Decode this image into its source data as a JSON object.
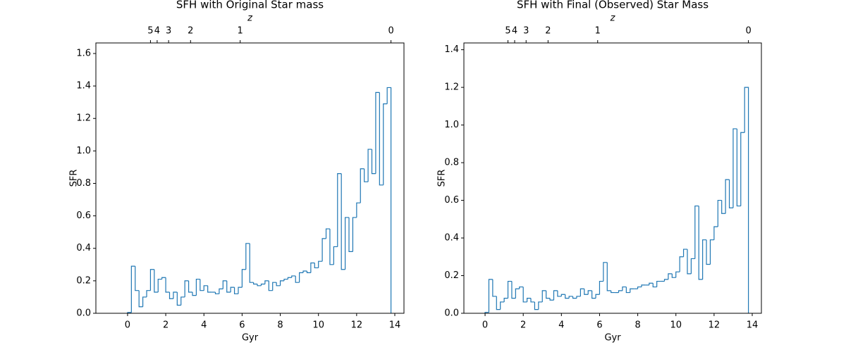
{
  "chart_data": [
    {
      "type": "step-histogram",
      "title": "SFH with Original Star mass",
      "xlabel": "Gyr",
      "ylabel": "SFR",
      "x2label": "z",
      "color": "#1f77b4",
      "xlim": [
        -1.66,
        14.48
      ],
      "ylim": [
        0,
        1.665
      ],
      "xticks": [
        0,
        2,
        4,
        6,
        8,
        10,
        12,
        14
      ],
      "yticks": [
        {
          "value": 0,
          "label": "0.0"
        },
        0.2,
        0.4,
        0.6,
        0.8,
        {
          "value": 1,
          "label": "1.0"
        },
        1.2,
        1.4,
        1.6
      ],
      "x2ticks": [
        {
          "value": 1.2,
          "label": "5"
        },
        {
          "value": 1.55,
          "label": "4"
        },
        {
          "value": 2.15,
          "label": "3"
        },
        {
          "value": 3.3,
          "label": "2"
        },
        {
          "value": 5.9,
          "label": "1"
        },
        {
          "value": 13.8,
          "label": "0"
        }
      ],
      "bins": [
        0,
        0.2,
        0.4,
        0.6,
        0.8,
        1,
        1.2,
        1.4,
        1.6,
        1.8,
        2,
        2.2,
        2.4,
        2.6,
        2.8,
        3,
        3.2,
        3.4,
        3.6,
        3.8,
        4,
        4.2,
        4.4,
        4.6,
        4.8,
        5,
        5.2,
        5.4,
        5.6,
        5.8,
        6,
        6.2,
        6.4,
        6.6,
        6.8,
        7,
        7.2,
        7.4,
        7.6,
        7.8,
        8,
        8.2,
        8.4,
        8.6,
        8.8,
        9,
        9.2,
        9.4,
        9.6,
        9.8,
        10,
        10.2,
        10.4,
        10.6,
        10.8,
        11,
        11.2,
        11.4,
        11.6,
        11.8,
        12,
        12.2,
        12.4,
        12.6,
        12.8,
        13,
        13.2,
        13.4,
        13.6,
        13.8
      ],
      "values": [
        0.005,
        0.29,
        0.14,
        0.04,
        0.1,
        0.14,
        0.27,
        0.13,
        0.21,
        0.22,
        0.13,
        0.09,
        0.13,
        0.05,
        0.1,
        0.2,
        0.13,
        0.11,
        0.21,
        0.14,
        0.17,
        0.13,
        0.13,
        0.12,
        0.15,
        0.2,
        0.13,
        0.16,
        0.12,
        0.16,
        0.27,
        0.43,
        0.19,
        0.18,
        0.17,
        0.18,
        0.2,
        0.14,
        0.19,
        0.17,
        0.2,
        0.21,
        0.22,
        0.23,
        0.19,
        0.25,
        0.26,
        0.25,
        0.31,
        0.28,
        0.32,
        0.46,
        0.52,
        0.3,
        0.41,
        0.86,
        0.27,
        0.59,
        0.38,
        0.59,
        0.68,
        0.89,
        0.81,
        1.01,
        0.86,
        1.36,
        0.79,
        1.29,
        1.39
      ]
    },
    {
      "type": "step-histogram",
      "title": "SFH with Final (Observed) Star Mass",
      "xlabel": "Gyr",
      "ylabel": "SFR",
      "x2label": "z",
      "color": "#1f77b4",
      "xlim": [
        -1.11,
        14.48
      ],
      "ylim": [
        0,
        1.436
      ],
      "xticks": [
        0,
        2,
        4,
        6,
        8,
        10,
        12,
        14
      ],
      "yticks": [
        {
          "value": 0,
          "label": "0.0"
        },
        0.2,
        0.4,
        0.6,
        0.8,
        {
          "value": 1,
          "label": "1.0"
        },
        1.2,
        1.4
      ],
      "x2ticks": [
        {
          "value": 1.2,
          "label": "5"
        },
        {
          "value": 1.55,
          "label": "4"
        },
        {
          "value": 2.15,
          "label": "3"
        },
        {
          "value": 3.3,
          "label": "2"
        },
        {
          "value": 5.9,
          "label": "1"
        },
        {
          "value": 13.8,
          "label": "0"
        }
      ],
      "bins": [
        0,
        0.2,
        0.4,
        0.6,
        0.8,
        1,
        1.2,
        1.4,
        1.6,
        1.8,
        2,
        2.2,
        2.4,
        2.6,
        2.8,
        3,
        3.2,
        3.4,
        3.6,
        3.8,
        4,
        4.2,
        4.4,
        4.6,
        4.8,
        5,
        5.2,
        5.4,
        5.6,
        5.8,
        6,
        6.2,
        6.4,
        6.6,
        6.8,
        7,
        7.2,
        7.4,
        7.6,
        7.8,
        8,
        8.2,
        8.4,
        8.6,
        8.8,
        9,
        9.2,
        9.4,
        9.6,
        9.8,
        10,
        10.2,
        10.4,
        10.6,
        10.8,
        11,
        11.2,
        11.4,
        11.6,
        11.8,
        12,
        12.2,
        12.4,
        12.6,
        12.8,
        13,
        13.2,
        13.4,
        13.6,
        13.8
      ],
      "values": [
        0.005,
        0.18,
        0.09,
        0.02,
        0.06,
        0.08,
        0.17,
        0.08,
        0.13,
        0.14,
        0.06,
        0.08,
        0.06,
        0.02,
        0.06,
        0.12,
        0.08,
        0.07,
        0.12,
        0.09,
        0.1,
        0.08,
        0.09,
        0.08,
        0.09,
        0.13,
        0.1,
        0.12,
        0.08,
        0.1,
        0.17,
        0.27,
        0.12,
        0.11,
        0.11,
        0.12,
        0.14,
        0.11,
        0.13,
        0.13,
        0.14,
        0.15,
        0.15,
        0.16,
        0.14,
        0.17,
        0.17,
        0.18,
        0.21,
        0.19,
        0.22,
        0.3,
        0.34,
        0.21,
        0.29,
        0.57,
        0.18,
        0.39,
        0.26,
        0.39,
        0.46,
        0.6,
        0.53,
        0.71,
        0.56,
        0.98,
        0.57,
        0.96,
        1.2
      ]
    }
  ]
}
